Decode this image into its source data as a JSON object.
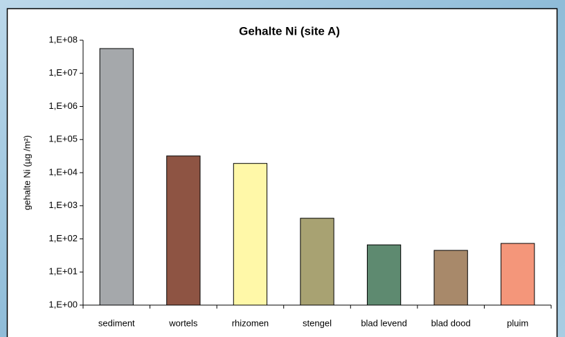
{
  "chart_data": {
    "type": "bar",
    "title": "Gehalte Ni (site A)",
    "y_label": "gehalte Ni (µg /m²)",
    "categories": [
      "sediment",
      "wortels",
      "rhizomen",
      "stengel",
      "blad levend",
      "blad dood",
      "pluim"
    ],
    "values": [
      56000000,
      32000.0,
      19000,
      420,
      66,
      45,
      73
    ],
    "colors": [
      "#a5a8ab",
      "#8e5443",
      "#fff8a8",
      "#a8a272",
      "#5e8a70",
      "#a8896a",
      "#f4967a"
    ],
    "log_scale": true,
    "ylim": [
      1,
      100000000
    ],
    "yticks": [
      {
        "value": 1,
        "label": "1,E+00"
      },
      {
        "value": 10,
        "label": "1,E+01"
      },
      {
        "value": 100,
        "label": "1,E+02"
      },
      {
        "value": 1000,
        "label": "1,E+03"
      },
      {
        "value": 10000,
        "label": "1,E+04"
      },
      {
        "value": 100000,
        "label": "1,E+05"
      },
      {
        "value": 1000000,
        "label": "1,E+06"
      },
      {
        "value": 10000000,
        "label": "1,E+07"
      },
      {
        "value": 100000000,
        "label": "1,E+08"
      }
    ]
  }
}
